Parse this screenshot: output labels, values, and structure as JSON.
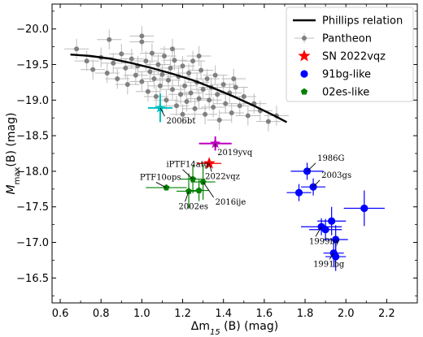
{
  "chart_data": {
    "type": "scatter",
    "title": "",
    "xlabel": "Δm",
    "xlabel_sub": "15",
    "xlabel_tail": "(B) (mag)",
    "ylabel": "M",
    "ylabel_sub": "max",
    "ylabel_tail": "(B) (mag)",
    "xlim": [
      0.56,
      2.35
    ],
    "ylim": [
      -20.35,
      -16.15
    ],
    "y_inverted": true,
    "x_ticks": [
      0.6,
      0.8,
      1.0,
      1.2,
      1.4,
      1.6,
      1.8,
      2.0,
      2.2
    ],
    "x_tick_labels": [
      "0.6",
      "0.8",
      "1.0",
      "1.2",
      "1.4",
      "1.6",
      "1.8",
      "2.0",
      "2.2"
    ],
    "y_ticks": [
      -20.0,
      -19.5,
      -19.0,
      -18.5,
      -18.0,
      -17.5,
      -17.0,
      -16.5
    ],
    "y_tick_labels": [
      "−20.0",
      "−19.5",
      "−19.0",
      "−18.5",
      "−18.0",
      "−17.5",
      "−17.0",
      "−16.5"
    ],
    "grid": false,
    "legend_position": "top-right",
    "legend": [
      {
        "label": "Phillips relation",
        "marker": "line",
        "color": "#000000"
      },
      {
        "label": "Pantheon",
        "marker": "point-errorbar",
        "color": "#808080"
      },
      {
        "label": "SN 2022vqz",
        "marker": "star",
        "color": "#ff0000"
      },
      {
        "label": "91bg-like",
        "marker": "circle",
        "color": "#0000ff"
      },
      {
        "label": "02es-like",
        "marker": "pentagon",
        "color": "#008000"
      }
    ],
    "phillips_relation": {
      "color": "#000000",
      "x": [
        0.65,
        0.75,
        0.85,
        0.95,
        1.05,
        1.15,
        1.25,
        1.35,
        1.45,
        1.55,
        1.65,
        1.71
      ],
      "y": [
        -19.64,
        -19.62,
        -19.58,
        -19.52,
        -19.45,
        -19.37,
        -19.28,
        -19.17,
        -19.05,
        -18.92,
        -18.78,
        -18.69
      ]
    },
    "series": [
      {
        "name": "Pantheon",
        "color": "#808080",
        "marker": "point",
        "xerr": 0.06,
        "yerr": 0.14,
        "points": [
          [
            0.68,
            -19.72
          ],
          [
            0.73,
            -19.55
          ],
          [
            0.76,
            -19.43
          ],
          [
            0.8,
            -19.6
          ],
          [
            0.83,
            -19.38
          ],
          [
            0.86,
            -19.52
          ],
          [
            0.88,
            -19.3
          ],
          [
            0.9,
            -19.65
          ],
          [
            0.92,
            -19.45
          ],
          [
            0.93,
            -19.22
          ],
          [
            0.95,
            -19.58
          ],
          [
            0.97,
            -19.35
          ],
          [
            0.98,
            -19.48
          ],
          [
            1.0,
            -19.82
          ],
          [
            1.0,
            -19.26
          ],
          [
            1.02,
            -19.55
          ],
          [
            1.03,
            -19.12
          ],
          [
            1.04,
            -19.4
          ],
          [
            1.05,
            -19.66
          ],
          [
            1.06,
            -19.3
          ],
          [
            1.07,
            -19.05
          ],
          [
            1.08,
            -19.5
          ],
          [
            1.09,
            -19.2
          ],
          [
            1.1,
            -19.36
          ],
          [
            1.11,
            -19.62
          ],
          [
            1.12,
            -19.0
          ],
          [
            1.13,
            -19.28
          ],
          [
            1.14,
            -19.45
          ],
          [
            1.15,
            -19.15
          ],
          [
            1.16,
            -19.56
          ],
          [
            1.17,
            -18.92
          ],
          [
            1.18,
            -19.33
          ],
          [
            1.19,
            -19.08
          ],
          [
            1.2,
            -19.48
          ],
          [
            1.21,
            -19.2
          ],
          [
            1.22,
            -18.98
          ],
          [
            1.23,
            -19.38
          ],
          [
            1.24,
            -19.1
          ],
          [
            1.25,
            -19.55
          ],
          [
            1.26,
            -18.88
          ],
          [
            1.27,
            -19.25
          ],
          [
            1.28,
            -19.02
          ],
          [
            1.29,
            -19.42
          ],
          [
            1.3,
            -19.15
          ],
          [
            1.31,
            -18.8
          ],
          [
            1.32,
            -19.3
          ],
          [
            1.33,
            -19.0
          ],
          [
            1.34,
            -19.18
          ],
          [
            1.35,
            -18.9
          ],
          [
            1.36,
            -19.35
          ],
          [
            1.37,
            -19.08
          ],
          [
            1.38,
            -18.72
          ],
          [
            1.4,
            -19.22
          ],
          [
            1.41,
            -18.95
          ],
          [
            1.43,
            -19.1
          ],
          [
            1.44,
            -18.82
          ],
          [
            1.46,
            -19.18
          ],
          [
            1.48,
            -18.92
          ],
          [
            1.5,
            -19.05
          ],
          [
            1.52,
            -18.78
          ],
          [
            1.55,
            -18.95
          ],
          [
            1.58,
            -18.85
          ],
          [
            1.62,
            -18.7
          ],
          [
            1.66,
            -18.78
          ],
          [
            1.0,
            -19.9
          ],
          [
            1.15,
            -19.72
          ],
          [
            1.28,
            -19.62
          ],
          [
            0.84,
            -19.85
          ],
          [
            1.2,
            -18.8
          ],
          [
            1.45,
            -19.3
          ]
        ]
      },
      {
        "name": "SN 2022vqz",
        "color": "#ff0000",
        "marker": "star",
        "points": [
          [
            1.33,
            -18.11
          ]
        ],
        "xerr": 0.06,
        "yerr": 0.05
      },
      {
        "name": "91bg-like",
        "color": "#0000ff",
        "marker": "circle",
        "points": [
          [
            1.81,
            -18.0
          ],
          [
            1.84,
            -17.78
          ],
          [
            1.77,
            -17.7
          ],
          [
            1.88,
            -17.22
          ],
          [
            1.9,
            -17.18
          ],
          [
            1.93,
            -17.3
          ],
          [
            1.95,
            -17.04
          ],
          [
            1.94,
            -16.85
          ],
          [
            1.95,
            -16.8
          ],
          [
            2.09,
            -17.48
          ]
        ],
        "xerrs": [
          0.08,
          0.06,
          0.06,
          0.1,
          0.08,
          0.07,
          0.06,
          0.05,
          0.05,
          0.1
        ],
        "yerrs": [
          0.12,
          0.12,
          0.12,
          0.12,
          0.15,
          0.2,
          0.2,
          0.2,
          0.2,
          0.25
        ]
      },
      {
        "name": "02es-like",
        "color": "#008000",
        "marker": "pentagon",
        "points": [
          [
            1.12,
            -17.77
          ],
          [
            1.25,
            -17.89
          ],
          [
            1.23,
            -17.72
          ],
          [
            1.28,
            -17.73
          ],
          [
            1.3,
            -17.85
          ]
        ],
        "xerrs": [
          0.1,
          0.06,
          0.06,
          0.05,
          0.06
        ],
        "yerrs": [
          0.04,
          0.2,
          0.25,
          0.15,
          0.25
        ]
      },
      {
        "name": "SN 2006bt",
        "color": "#00bfbf",
        "marker": "star",
        "points": [
          [
            1.09,
            -18.89
          ]
        ],
        "xerr": 0.06,
        "yerr": 0.2
      },
      {
        "name": "SN 2019yvq",
        "color": "#bf00bf",
        "marker": "star",
        "points": [
          [
            1.36,
            -18.39
          ]
        ],
        "xerr": 0.08,
        "yerr": 0.1
      }
    ],
    "annotations": [
      {
        "text": "2006bt",
        "x": 1.09,
        "y": -18.89,
        "tx": 1.12,
        "ty": -18.67
      },
      {
        "text": "2019yvq",
        "x": 1.36,
        "y": -18.39,
        "tx": 1.37,
        "ty": -18.23
      },
      {
        "text": "iPTF14atg",
        "x": 1.25,
        "y": -17.89,
        "tx": 1.12,
        "ty": -18.06
      },
      {
        "text": "2022vqz",
        "x": 1.33,
        "y": -18.11,
        "tx": 1.31,
        "ty": -17.89
      },
      {
        "text": "PTF10ops",
        "x": 1.12,
        "y": -17.77,
        "tx": 0.99,
        "ty": -17.88
      },
      {
        "text": "2002es",
        "x": 1.23,
        "y": -17.72,
        "tx": 1.18,
        "ty": -17.47
      },
      {
        "text": "2016ije",
        "x": 1.3,
        "y": -17.85,
        "tx": 1.36,
        "ty": -17.53
      },
      {
        "text": "1986G",
        "x": 1.81,
        "y": -18.0,
        "tx": 1.86,
        "ty": -18.15
      },
      {
        "text": "2003gs",
        "x": 1.84,
        "y": -17.78,
        "tx": 1.88,
        "ty": -17.91
      },
      {
        "text": "1999by",
        "x": 1.88,
        "y": -17.22,
        "tx": 1.82,
        "ty": -16.98
      },
      {
        "text": "1991bg",
        "x": 1.94,
        "y": -16.85,
        "tx": 1.84,
        "ty": -16.66
      }
    ]
  }
}
